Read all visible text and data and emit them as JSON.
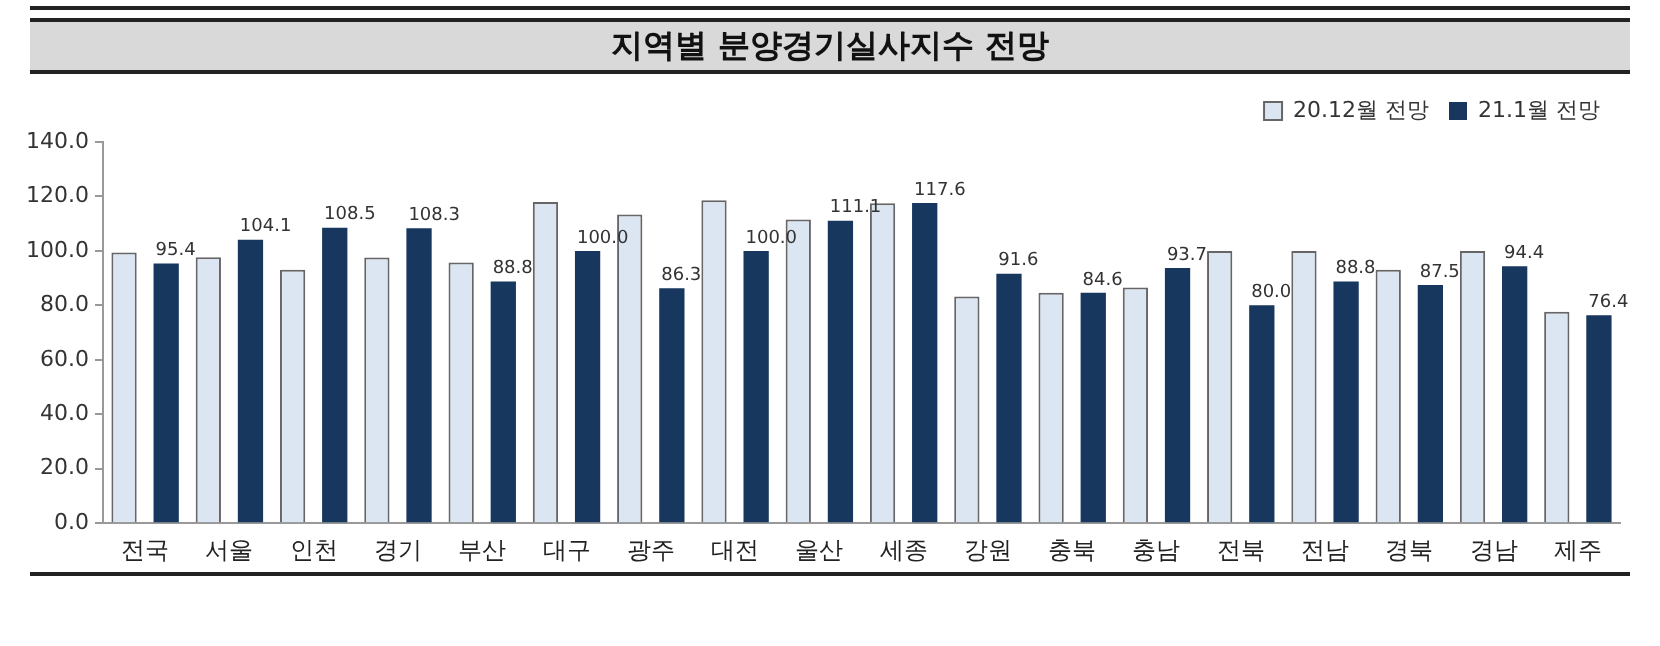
{
  "chart_data": {
    "type": "bar",
    "title": "지역별 분양경기실사지수 전망",
    "categories": [
      "전국",
      "서울",
      "인천",
      "경기",
      "부산",
      "대구",
      "광주",
      "대전",
      "울산",
      "세종",
      "강원",
      "충북",
      "충남",
      "전북",
      "전남",
      "경북",
      "경남",
      "제주"
    ],
    "series": [
      {
        "name": "20.12월 전망",
        "color": "#dce6f2",
        "values": [
          99.4,
          97.7,
          93.1,
          97.6,
          95.7,
          118.0,
          113.4,
          118.6,
          111.5,
          117.5,
          83.3,
          84.6,
          86.6,
          100.0,
          100.0,
          93.1,
          100.0,
          77.7
        ]
      },
      {
        "name": "21.1월 전망",
        "color": "#17375e",
        "values": [
          95.4,
          104.1,
          108.5,
          108.3,
          88.8,
          100.0,
          86.3,
          100.0,
          111.1,
          117.6,
          91.6,
          84.6,
          93.7,
          80.0,
          88.8,
          87.5,
          94.4,
          76.4
        ],
        "value_labels": [
          "95.4",
          "104.1",
          "108.5",
          "108.3",
          "88.8",
          "100.0",
          "86.3",
          "100.0",
          "111.1",
          "117.6",
          "91.6",
          "84.6",
          "93.7",
          "80.0",
          "88.8",
          "87.5",
          "94.4",
          "76.4"
        ]
      }
    ],
    "ylim": [
      0,
      140
    ],
    "yticks": [
      {
        "value": 0,
        "label": "0.0"
      },
      {
        "value": 20,
        "label": "20.0"
      },
      {
        "value": 40,
        "label": "40.0"
      },
      {
        "value": 60,
        "label": "60.0"
      },
      {
        "value": 80,
        "label": "80.0"
      },
      {
        "value": 100,
        "label": "100.0"
      },
      {
        "value": 120,
        "label": "120.0"
      },
      {
        "value": 140,
        "label": "140.0"
      }
    ],
    "grid": false,
    "legend": "top right"
  }
}
